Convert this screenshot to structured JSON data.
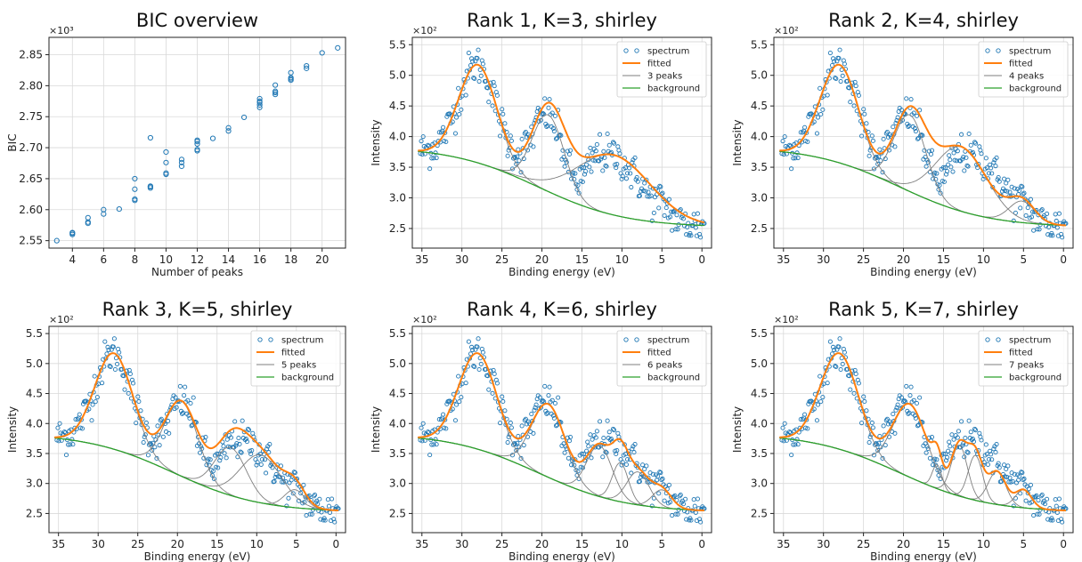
{
  "colors": {
    "spectrum": "#1f77b4",
    "fitted": "#ff7f0e",
    "peaks": "#7f7f7f",
    "background": "#2ca02c"
  },
  "chart_data": [
    {
      "type": "scatter",
      "title": "BIC overview",
      "xlabel": "Number of peaks",
      "ylabel": "BIC",
      "y_multiplier": "×10³",
      "xlim": [
        2.5,
        21.5
      ],
      "ylim": [
        2.538,
        2.878
      ],
      "xticks": [
        4,
        6,
        8,
        10,
        12,
        14,
        16,
        18,
        20
      ],
      "yticks": [
        2.55,
        2.6,
        2.65,
        2.7,
        2.75,
        2.8,
        2.85
      ],
      "ytick_labels": [
        "2.55",
        "2.60",
        "2.65",
        "2.70",
        "2.75",
        "2.80",
        "2.85"
      ],
      "grid": true,
      "x": [
        3,
        4,
        4,
        4,
        5,
        5,
        5,
        6,
        6,
        7,
        8,
        8,
        8,
        8,
        9,
        9,
        9,
        9,
        10,
        10,
        10,
        10,
        11,
        11,
        11,
        12,
        12,
        12,
        12,
        12,
        13,
        14,
        14,
        15,
        16,
        16,
        16,
        16,
        16,
        17,
        17,
        17,
        17,
        18,
        18,
        18,
        18,
        19,
        19,
        20,
        21
      ],
      "y": [
        2.55,
        2.56,
        2.562,
        2.563,
        2.578,
        2.58,
        2.587,
        2.593,
        2.6,
        2.601,
        2.615,
        2.617,
        2.633,
        2.65,
        2.635,
        2.637,
        2.638,
        2.716,
        2.657,
        2.659,
        2.676,
        2.693,
        2.67,
        2.676,
        2.681,
        2.695,
        2.697,
        2.706,
        2.71,
        2.712,
        2.715,
        2.727,
        2.732,
        2.749,
        2.765,
        2.769,
        2.773,
        2.775,
        2.779,
        2.786,
        2.789,
        2.791,
        2.801,
        2.809,
        2.811,
        2.813,
        2.821,
        2.828,
        2.832,
        2.853,
        2.861
      ]
    },
    {
      "type": "line",
      "title": "Rank 1, K=3, shirley",
      "xlabel": "Binding energy (eV)",
      "ylabel": "Intensity",
      "y_multiplier": "×10²",
      "x_reversed": true,
      "xlim": [
        36.2,
        -1.2
      ],
      "ylim": [
        2.18,
        5.62
      ],
      "xticks": [
        35,
        30,
        25,
        20,
        15,
        10,
        5,
        0
      ],
      "yticks": [
        2.5,
        3.0,
        3.5,
        4.0,
        4.5,
        5.0,
        5.5
      ],
      "ytick_labels": [
        "2.5",
        "3.0",
        "3.5",
        "4.0",
        "4.5",
        "5.0",
        "5.5"
      ],
      "grid": true,
      "legend_position": "top-right",
      "legend": [
        "spectrum",
        "fitted",
        "3 peaks",
        "background"
      ],
      "peaks": [
        {
          "center": 28.0,
          "height": 1.6,
          "width": 2.4
        },
        {
          "center": 19.2,
          "height": 1.25,
          "width": 2.0
        },
        {
          "center": 11.0,
          "height": 0.98,
          "width": 4.6
        }
      ]
    },
    {
      "type": "line",
      "title": "Rank 2, K=4, shirley",
      "xlabel": "Binding energy (eV)",
      "ylabel": "Intensity",
      "y_multiplier": "×10²",
      "x_reversed": true,
      "xlim": [
        36.2,
        -1.2
      ],
      "ylim": [
        2.18,
        5.62
      ],
      "xticks": [
        35,
        30,
        25,
        20,
        15,
        10,
        5,
        0
      ],
      "yticks": [
        2.5,
        3.0,
        3.5,
        4.0,
        4.5,
        5.0,
        5.5
      ],
      "ytick_labels": [
        "2.5",
        "3.0",
        "3.5",
        "4.0",
        "4.5",
        "5.0",
        "5.5"
      ],
      "grid": true,
      "legend_position": "top-right",
      "legend": [
        "spectrum",
        "fitted",
        "4 peaks",
        "background"
      ],
      "peaks": [
        {
          "center": 28.0,
          "height": 1.6,
          "width": 2.4
        },
        {
          "center": 19.2,
          "height": 1.25,
          "width": 2.0
        },
        {
          "center": 12.8,
          "height": 1.05,
          "width": 3.2
        },
        {
          "center": 5.2,
          "height": 0.35,
          "width": 1.6
        }
      ]
    },
    {
      "type": "line",
      "title": "Rank 3, K=5, shirley",
      "xlabel": "Binding energy (eV)",
      "ylabel": "Intensity",
      "y_multiplier": "×10²",
      "x_reversed": true,
      "xlim": [
        36.2,
        -1.2
      ],
      "ylim": [
        2.18,
        5.62
      ],
      "xticks": [
        35,
        30,
        25,
        20,
        15,
        10,
        5,
        0
      ],
      "yticks": [
        2.5,
        3.0,
        3.5,
        4.0,
        4.5,
        5.0,
        5.5
      ],
      "ytick_labels": [
        "2.5",
        "3.0",
        "3.5",
        "4.0",
        "4.5",
        "5.0",
        "5.5"
      ],
      "grid": true,
      "legend_position": "top-right",
      "legend": [
        "spectrum",
        "fitted",
        "5 peaks",
        "background"
      ],
      "peaks": [
        {
          "center": 28.0,
          "height": 1.6,
          "width": 2.4
        },
        {
          "center": 19.5,
          "height": 1.25,
          "width": 2.1
        },
        {
          "center": 13.3,
          "height": 0.8,
          "width": 2.0
        },
        {
          "center": 9.5,
          "height": 0.8,
          "width": 2.6
        },
        {
          "center": 5.2,
          "height": 0.3,
          "width": 1.3
        }
      ]
    },
    {
      "type": "line",
      "title": "Rank 4, K=6, shirley",
      "xlabel": "Binding energy (eV)",
      "ylabel": "Intensity",
      "y_multiplier": "×10²",
      "x_reversed": true,
      "xlim": [
        36.2,
        -1.2
      ],
      "ylim": [
        2.18,
        5.62
      ],
      "xticks": [
        35,
        30,
        25,
        20,
        15,
        10,
        5,
        0
      ],
      "yticks": [
        2.5,
        3.0,
        3.5,
        4.0,
        4.5,
        5.0,
        5.5
      ],
      "ytick_labels": [
        "2.5",
        "3.0",
        "3.5",
        "4.0",
        "4.5",
        "5.0",
        "5.5"
      ],
      "grid": true,
      "legend_position": "top-right",
      "legend": [
        "spectrum",
        "fitted",
        "6 peaks",
        "background"
      ],
      "peaks": [
        {
          "center": 28.0,
          "height": 1.6,
          "width": 2.4
        },
        {
          "center": 19.2,
          "height": 1.22,
          "width": 2.1
        },
        {
          "center": 12.8,
          "height": 0.85,
          "width": 1.6
        },
        {
          "center": 10.2,
          "height": 0.65,
          "width": 1.0
        },
        {
          "center": 8.0,
          "height": 0.55,
          "width": 1.4
        },
        {
          "center": 5.0,
          "height": 0.3,
          "width": 1.2
        }
      ]
    },
    {
      "type": "line",
      "title": "Rank 5, K=7, shirley",
      "xlabel": "Binding energy (eV)",
      "ylabel": "Intensity",
      "y_multiplier": "×10²",
      "x_reversed": true,
      "xlim": [
        36.2,
        -1.2
      ],
      "ylim": [
        2.18,
        5.62
      ],
      "xticks": [
        35,
        30,
        25,
        20,
        15,
        10,
        5,
        0
      ],
      "yticks": [
        2.5,
        3.0,
        3.5,
        4.0,
        4.5,
        5.0,
        5.5
      ],
      "ytick_labels": [
        "2.5",
        "3.0",
        "3.5",
        "4.0",
        "4.5",
        "5.0",
        "5.5"
      ],
      "grid": true,
      "legend_position": "top-right",
      "legend": [
        "spectrum",
        "fitted",
        "7 peaks",
        "background"
      ],
      "peaks": [
        {
          "center": 28.0,
          "height": 1.6,
          "width": 2.4
        },
        {
          "center": 19.2,
          "height": 1.22,
          "width": 2.1
        },
        {
          "center": 15.8,
          "height": 0.4,
          "width": 0.6
        },
        {
          "center": 13.0,
          "height": 0.85,
          "width": 1.0
        },
        {
          "center": 11.0,
          "height": 0.75,
          "width": 0.9
        },
        {
          "center": 8.3,
          "height": 0.55,
          "width": 1.1
        },
        {
          "center": 5.0,
          "height": 0.3,
          "width": 1.0
        }
      ]
    }
  ]
}
